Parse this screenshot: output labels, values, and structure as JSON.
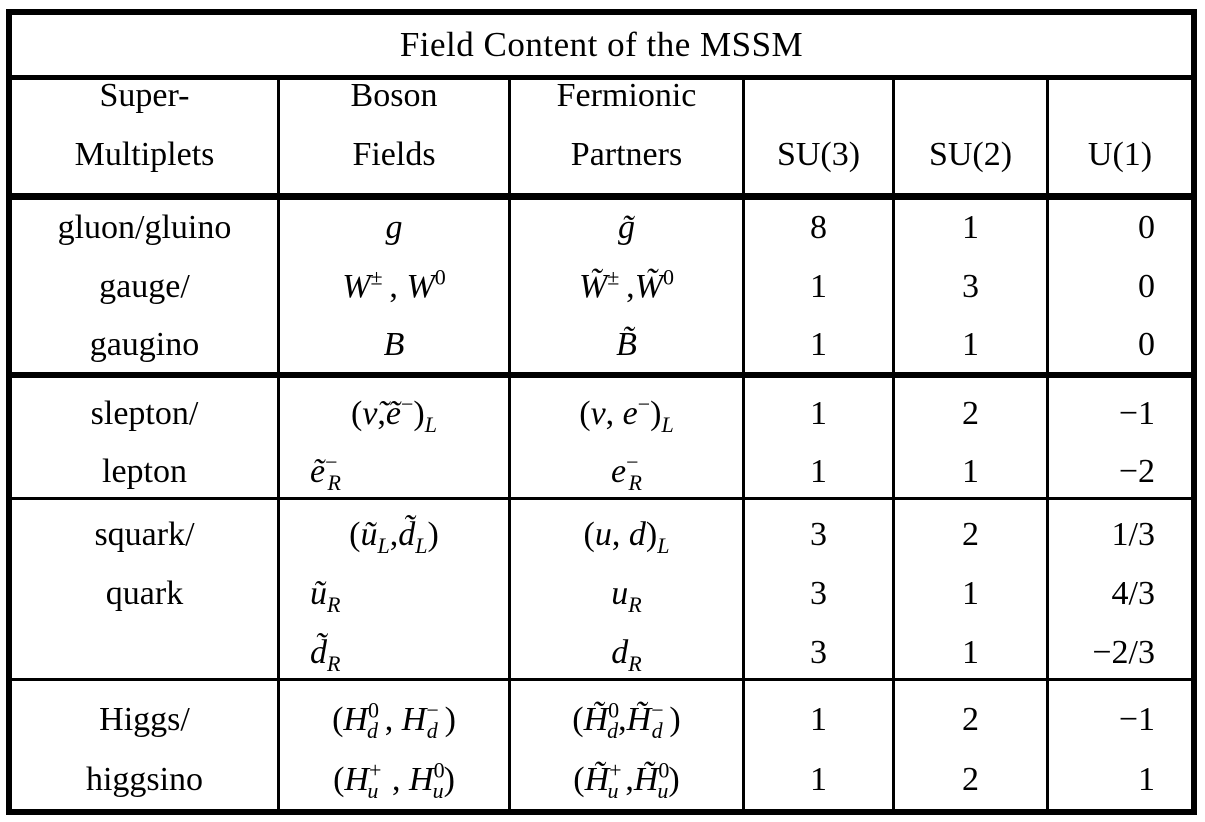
{
  "table": {
    "title": "Field Content of the MSSM",
    "header": [
      [
        "Super-",
        "Multiplets"
      ],
      [
        "Boson",
        "Fields"
      ],
      [
        "Fermionic",
        "Partners"
      ],
      [
        "",
        "SU(3)"
      ],
      [
        "",
        "SU(2)"
      ],
      [
        "",
        "U(1)"
      ]
    ],
    "rows": [
      {
        "multiplet": "gluon/gluino",
        "boson": "g",
        "fermion": "g̃",
        "su3": "8",
        "su2": "1",
        "u1": "0"
      },
      {
        "multiplet": "gauge/",
        "boson": "W±, W0",
        "fermion": "W̃±, W̃0",
        "su3": "1",
        "su2": "3",
        "u1": "0"
      },
      {
        "multiplet": "gaugino",
        "boson": "B",
        "fermion": "B̃",
        "su3": "1",
        "su2": "1",
        "u1": "0"
      },
      {
        "multiplet": "slepton/",
        "boson": "(ν̃, ẽ−)L",
        "fermion": "(ν, e−)L",
        "su3": "1",
        "su2": "2",
        "u1": "−1"
      },
      {
        "multiplet": "lepton",
        "boson": "ẽ−R",
        "fermion": "e−R",
        "su3": "1",
        "su2": "1",
        "u1": "−2"
      },
      {
        "multiplet": "squark/",
        "boson": "(ũL, d̃L)",
        "fermion": "(u, d)L",
        "su3": "3",
        "su2": "2",
        "u1": "1/3"
      },
      {
        "multiplet": "quark",
        "boson": "ũR",
        "fermion": "uR",
        "su3": "3",
        "su2": "1",
        "u1": "4/3"
      },
      {
        "multiplet": "",
        "boson": "d̃R",
        "fermion": "dR",
        "su3": "3",
        "su2": "1",
        "u1": "−2/3"
      },
      {
        "multiplet": "Higgs/",
        "boson": "(H0d, H−d)",
        "fermion": "(H̃0d, H̃−d)",
        "su3": "1",
        "su2": "2",
        "u1": "−1"
      },
      {
        "multiplet": "higgsino",
        "boson": "(H+u, H0u)",
        "fermion": "(H̃+u, H̃0u)",
        "su3": "1",
        "su2": "2",
        "u1": "1"
      }
    ]
  }
}
